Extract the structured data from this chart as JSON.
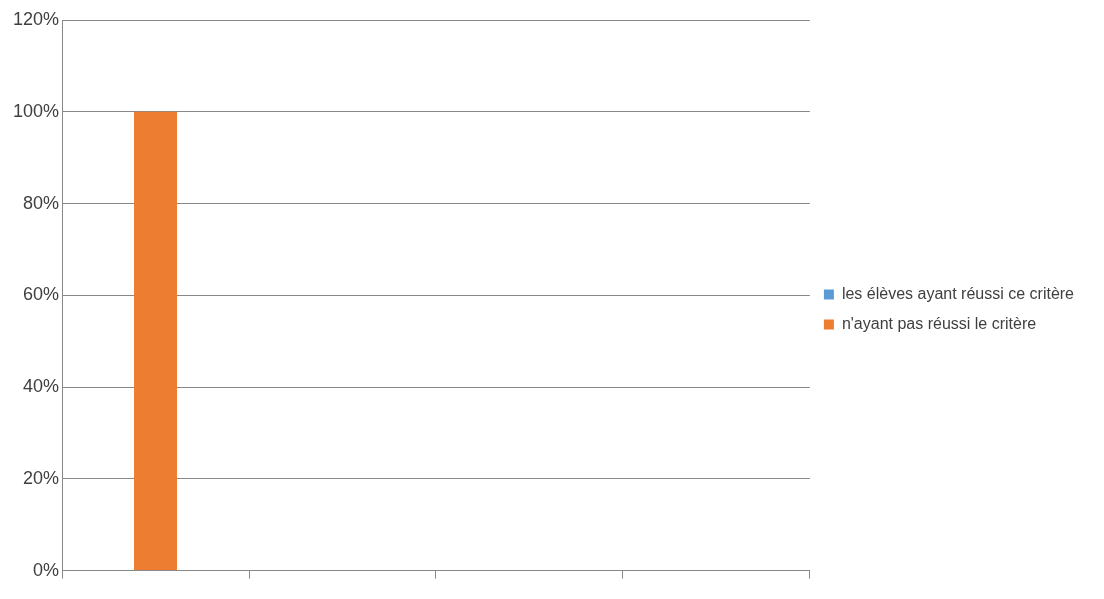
{
  "chart_data": {
    "type": "bar",
    "stacked": true,
    "categories": [
      null,
      null,
      null,
      null
    ],
    "series": [
      {
        "name": "les élèves ayant réussi ce critère",
        "color": "#5b9bd5",
        "values": [
          0,
          null,
          null,
          null
        ]
      },
      {
        "name": "n'ayant pas réussi le critère",
        "color": "#ed7d31",
        "values": [
          100,
          null,
          null,
          null
        ]
      }
    ],
    "ylim": [
      0,
      120
    ],
    "yticks": [
      {
        "value": 0,
        "label": "0%"
      },
      {
        "value": 20,
        "label": "20%"
      },
      {
        "value": 40,
        "label": "40%"
      },
      {
        "value": 60,
        "label": "60%"
      },
      {
        "value": 80,
        "label": "80%"
      },
      {
        "value": 100,
        "label": "100%"
      },
      {
        "value": 120,
        "label": "120%"
      }
    ],
    "grid": "y",
    "legend": "right"
  }
}
